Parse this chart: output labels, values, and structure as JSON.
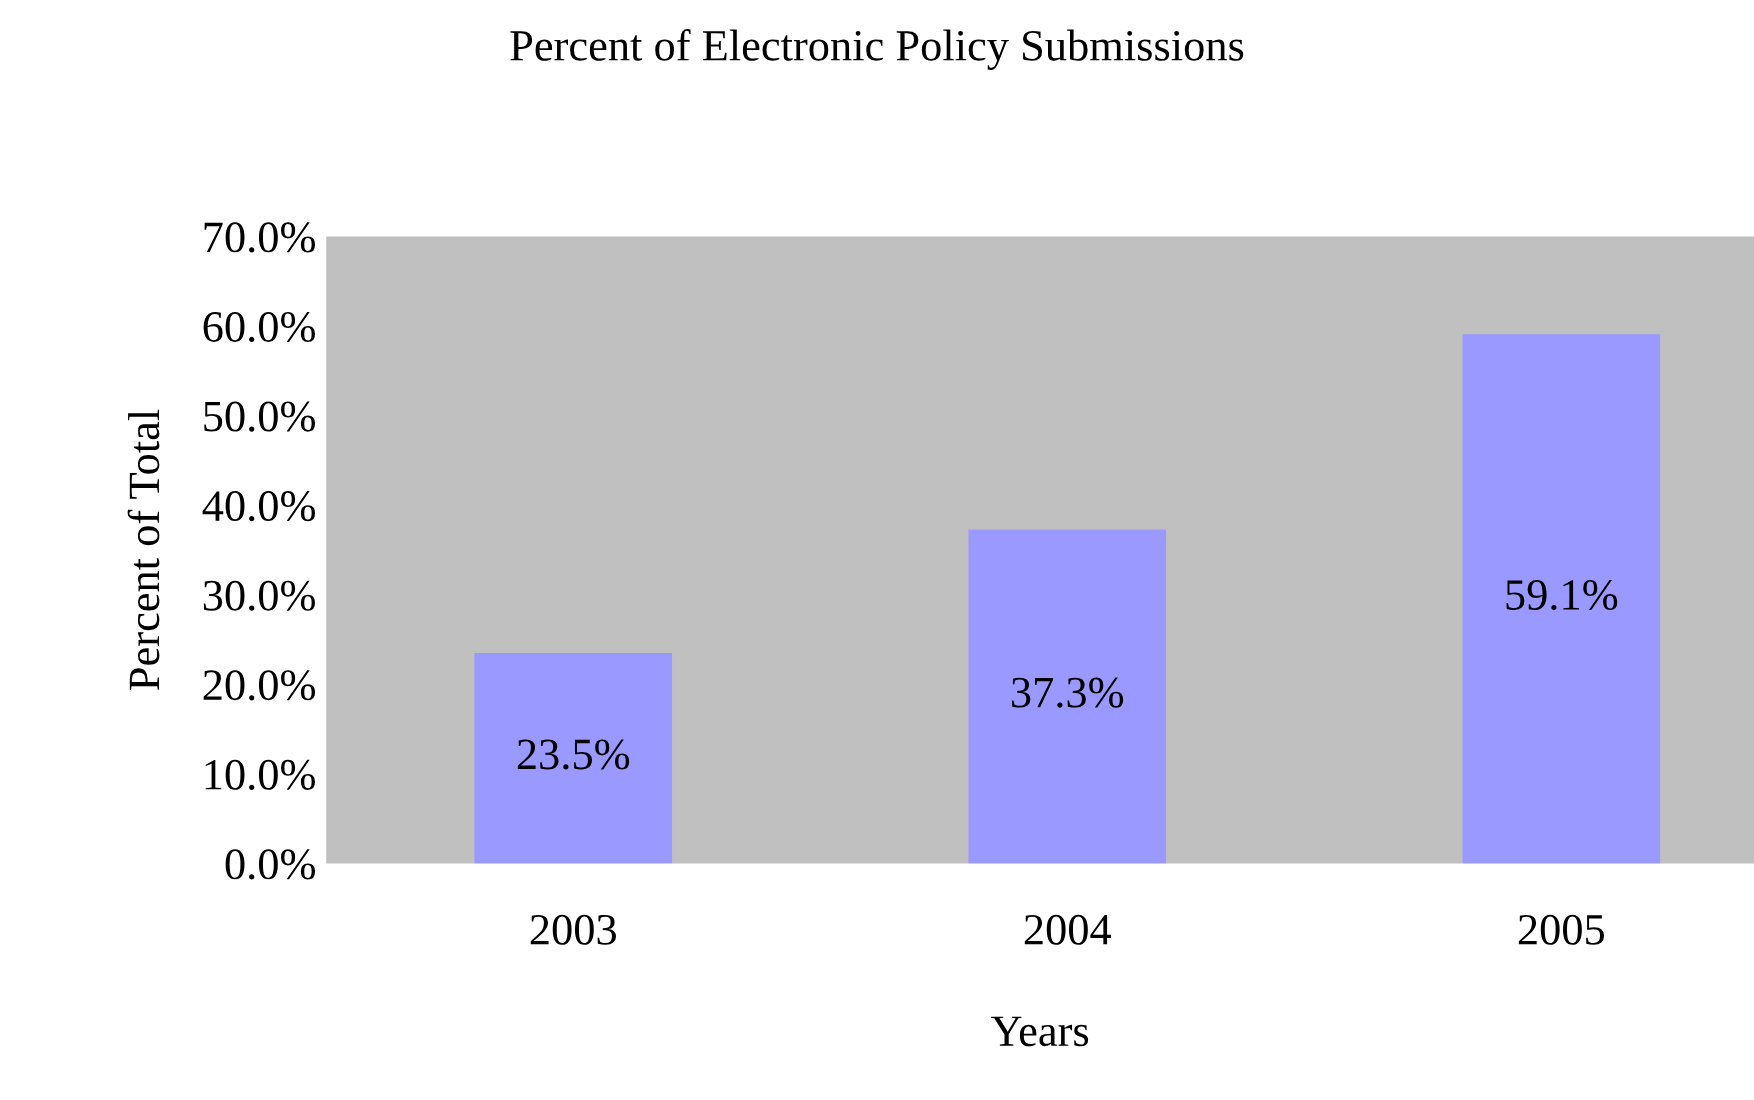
{
  "chart_data": {
    "type": "bar",
    "title": "Percent of Electronic Policy Submissions",
    "xlabel": "Years",
    "ylabel": "Percent of Total",
    "categories": [
      "2003",
      "2004",
      "2005"
    ],
    "values": [
      23.5,
      37.3,
      59.1
    ],
    "value_labels": [
      "23.5%",
      "37.3%",
      "59.1%"
    ],
    "color": "#9999ff",
    "ylim": [
      0,
      70
    ],
    "yticks": [
      {
        "value": 0,
        "label": "0.0%"
      },
      {
        "value": 10,
        "label": "10.0%"
      },
      {
        "value": 20,
        "label": "20.0%"
      },
      {
        "value": 30,
        "label": "30.0%"
      },
      {
        "value": 40,
        "label": "40.0%"
      },
      {
        "value": 50,
        "label": "50.0%"
      },
      {
        "value": 60,
        "label": "60.0%"
      },
      {
        "value": 70,
        "label": "70.0%"
      }
    ],
    "grid": false,
    "legend": false
  }
}
